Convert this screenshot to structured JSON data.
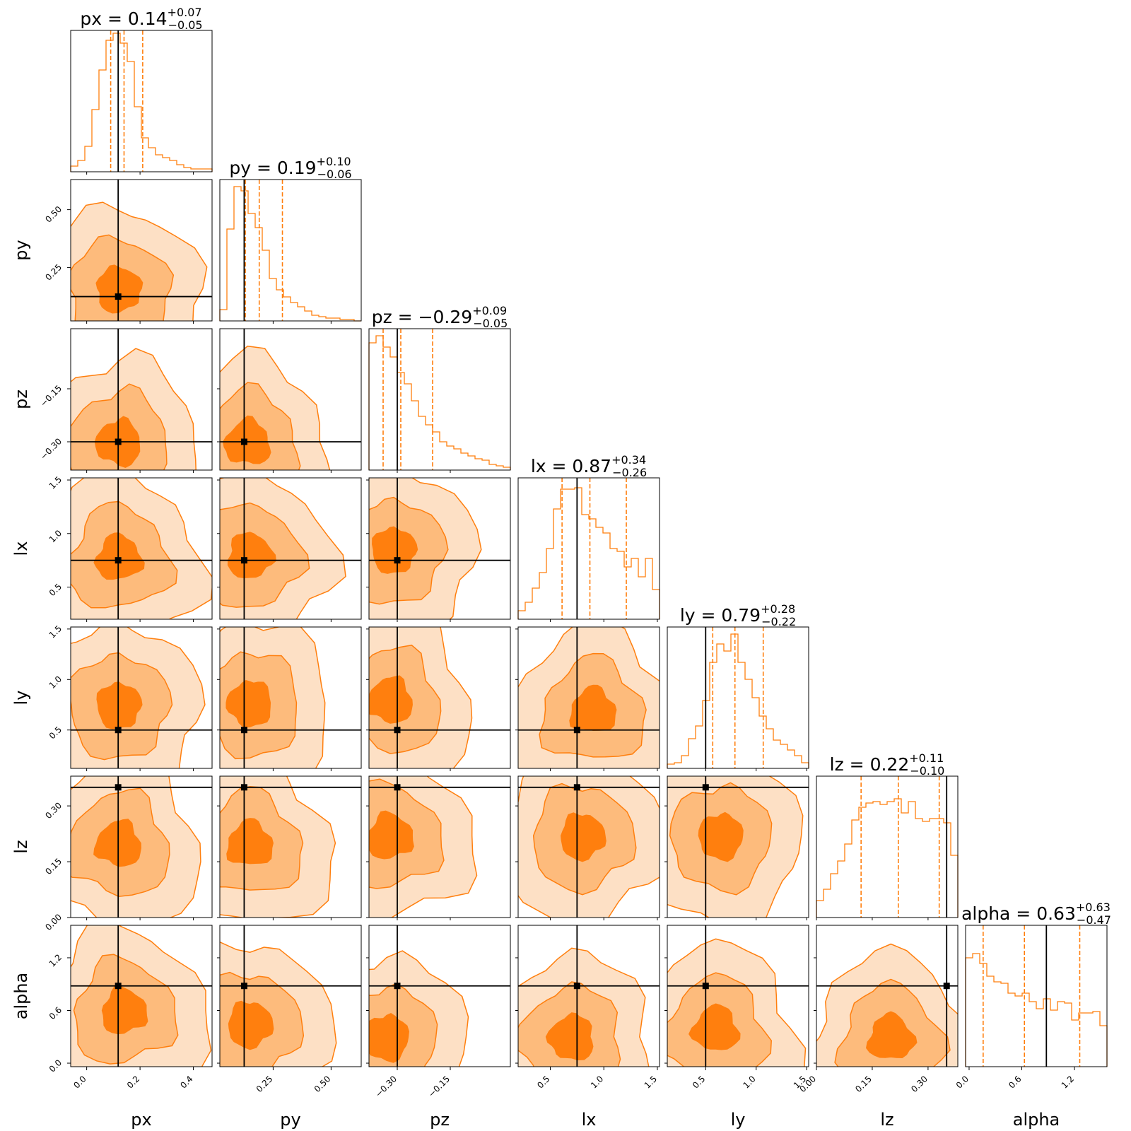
{
  "chart_data": {
    "type": "corner",
    "colors": {
      "posterior": "#ff7f0e",
      "truth": "#000000",
      "fill_inner": "#ff7f0e",
      "fill_mid": "#fdbb7c",
      "fill_outer": "#fde0c5"
    },
    "parameters": [
      {
        "name": "px",
        "title_prefix": "px = ",
        "median": "0.14",
        "plus": "+0.07",
        "minus": "−0.05",
        "range": [
          -0.06,
          0.47
        ],
        "truth": 0.118,
        "quantiles": [
          0.09,
          0.14,
          0.21
        ],
        "hist": [
          0.04,
          0.08,
          0.18,
          0.44,
          0.72,
          0.93,
          0.98,
          0.91,
          0.78,
          0.46,
          0.24,
          0.17,
          0.12,
          0.1,
          0.08,
          0.05,
          0.03,
          0.02,
          0.02,
          0.02
        ],
        "ticks": [
          0.0,
          0.2,
          0.4
        ],
        "tick_labels": [
          "0.0",
          "0.2",
          "0.4"
        ]
      },
      {
        "name": "py",
        "title_prefix": "py = ",
        "median": "0.19",
        "plus": "+0.10",
        "minus": "−0.06",
        "range": [
          0.02,
          0.63
        ],
        "truth": 0.125,
        "quantiles": [
          0.13,
          0.19,
          0.29
        ],
        "hist": [
          0.08,
          0.65,
          0.95,
          0.92,
          0.76,
          0.66,
          0.5,
          0.3,
          0.22,
          0.17,
          0.13,
          0.1,
          0.07,
          0.04,
          0.03,
          0.02,
          0.02,
          0.01,
          0.01,
          0.0
        ],
        "ticks": [
          0.25,
          0.5
        ],
        "tick_labels": [
          "0.25",
          "0.50"
        ]
      },
      {
        "name": "pz",
        "title_prefix": "pz = ",
        "median": "−0.29",
        "plus": "+0.09",
        "minus": "−0.05",
        "range": [
          -0.38,
          0.02
        ],
        "truth": -0.3,
        "quantiles": [
          -0.34,
          -0.29,
          -0.2
        ],
        "hist": [
          0.9,
          0.95,
          0.87,
          0.8,
          0.69,
          0.61,
          0.49,
          0.38,
          0.32,
          0.27,
          0.2,
          0.17,
          0.15,
          0.12,
          0.1,
          0.08,
          0.07,
          0.04,
          0.03,
          0.02
        ],
        "ticks": [
          -0.3,
          -0.15
        ],
        "tick_labels": [
          "−0.30",
          "−0.15"
        ]
      },
      {
        "name": "lx",
        "title_prefix": "lx = ",
        "median": "0.87",
        "plus": "+0.34",
        "minus": "−0.26",
        "range": [
          0.2,
          1.52
        ],
        "truth": 0.75,
        "quantiles": [
          0.61,
          0.87,
          1.21
        ],
        "hist": [
          0.06,
          0.12,
          0.22,
          0.33,
          0.5,
          0.78,
          0.92,
          0.92,
          0.93,
          0.74,
          0.71,
          0.65,
          0.61,
          0.5,
          0.48,
          0.37,
          0.43,
          0.3,
          0.43,
          0.21
        ],
        "ticks": [
          0.5,
          1.0,
          1.5
        ],
        "tick_labels": [
          "0.5",
          "1.0",
          "1.5"
        ]
      },
      {
        "name": "ly",
        "title_prefix": "ly = ",
        "median": "0.79",
        "plus": "+0.28",
        "minus": "−0.22",
        "range": [
          0.12,
          1.52
        ],
        "truth": 0.5,
        "quantiles": [
          0.57,
          0.79,
          1.07
        ],
        "hist": [
          0.03,
          0.04,
          0.09,
          0.21,
          0.3,
          0.48,
          0.75,
          0.88,
          0.83,
          0.95,
          0.75,
          0.63,
          0.5,
          0.37,
          0.28,
          0.2,
          0.17,
          0.13,
          0.09,
          0.04
        ],
        "ticks": [
          0.5,
          1.0,
          1.5
        ],
        "tick_labels": [
          "0.5",
          "1.0",
          "1.5"
        ]
      },
      {
        "name": "lz",
        "title_prefix": "lz = ",
        "median": "0.22",
        "plus": "+0.11",
        "minus": "−0.10",
        "range": [
          0.0,
          0.38
        ],
        "truth": 0.35,
        "quantiles": [
          0.12,
          0.22,
          0.33
        ],
        "hist": [
          0.12,
          0.2,
          0.31,
          0.4,
          0.52,
          0.69,
          0.78,
          0.81,
          0.82,
          0.8,
          0.82,
          0.84,
          0.74,
          0.82,
          0.7,
          0.68,
          0.7,
          0.7,
          0.67,
          0.44
        ],
        "ticks": [
          0.0,
          0.15,
          0.3
        ],
        "tick_labels": [
          "0.00",
          "0.15",
          "0.30"
        ]
      },
      {
        "name": "alpha",
        "title_prefix": "alpha = ",
        "median": "0.63",
        "plus": "+0.63",
        "minus": "−0.47",
        "range": [
          -0.04,
          1.57
        ],
        "truth": 0.88,
        "quantiles": [
          0.16,
          0.63,
          1.26
        ],
        "hist": [
          0.77,
          0.8,
          0.73,
          0.64,
          0.6,
          0.59,
          0.52,
          0.5,
          0.52,
          0.46,
          0.41,
          0.48,
          0.4,
          0.46,
          0.45,
          0.33,
          0.38,
          0.38,
          0.39,
          0.29
        ],
        "ticks": [
          0.0,
          0.6,
          1.2
        ],
        "tick_labels": [
          "0.0",
          "0.6",
          "1.2"
        ]
      }
    ],
    "two_d_peaks": [
      {
        "row": "py",
        "col": "px",
        "peak": [
          0.12,
          0.16
        ]
      },
      {
        "row": "pz",
        "col": "px",
        "peak": [
          0.12,
          -0.3
        ]
      },
      {
        "row": "pz",
        "col": "py",
        "peak": [
          0.14,
          -0.3
        ]
      },
      {
        "row": "lx",
        "col": "px",
        "peak": [
          0.12,
          0.78
        ]
      },
      {
        "row": "lx",
        "col": "py",
        "peak": [
          0.15,
          0.8
        ]
      },
      {
        "row": "lx",
        "col": "pz",
        "peak": [
          -0.31,
          0.85
        ]
      },
      {
        "row": "ly",
        "col": "px",
        "peak": [
          0.12,
          0.75
        ]
      },
      {
        "row": "ly",
        "col": "py",
        "peak": [
          0.15,
          0.77
        ]
      },
      {
        "row": "ly",
        "col": "pz",
        "peak": [
          -0.32,
          0.8
        ]
      },
      {
        "row": "ly",
        "col": "lx",
        "peak": [
          0.9,
          0.7
        ]
      },
      {
        "row": "lz",
        "col": "px",
        "peak": [
          0.12,
          0.2
        ]
      },
      {
        "row": "lz",
        "col": "py",
        "peak": [
          0.15,
          0.2
        ]
      },
      {
        "row": "lz",
        "col": "pz",
        "peak": [
          -0.32,
          0.22
        ]
      },
      {
        "row": "lz",
        "col": "lx",
        "peak": [
          0.8,
          0.22
        ]
      },
      {
        "row": "lz",
        "col": "ly",
        "peak": [
          0.65,
          0.22
        ]
      },
      {
        "row": "alpha",
        "col": "px",
        "peak": [
          0.14,
          0.6
        ]
      },
      {
        "row": "alpha",
        "col": "py",
        "peak": [
          0.15,
          0.45
        ]
      },
      {
        "row": "alpha",
        "col": "pz",
        "peak": [
          -0.33,
          0.3
        ]
      },
      {
        "row": "alpha",
        "col": "lx",
        "peak": [
          0.7,
          0.3
        ]
      },
      {
        "row": "alpha",
        "col": "ly",
        "peak": [
          0.6,
          0.4
        ]
      },
      {
        "row": "alpha",
        "col": "lz",
        "peak": [
          0.2,
          0.3
        ]
      }
    ]
  }
}
